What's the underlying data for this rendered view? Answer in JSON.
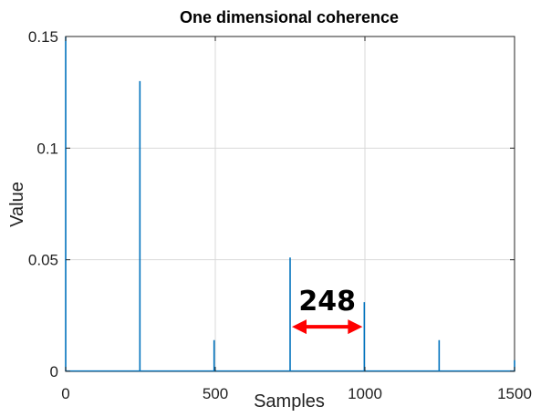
{
  "chart_data": {
    "type": "line",
    "title": "One dimensional coherence",
    "xlabel": "Samples",
    "ylabel": "Value",
    "xlim": [
      0,
      1500
    ],
    "ylim": [
      0,
      0.15
    ],
    "grid": true,
    "x_ticks": [
      "0",
      "500",
      "1000",
      "1500"
    ],
    "y_ticks": [
      "0",
      "0.05",
      "0.1",
      "0.15"
    ],
    "series": [
      {
        "color": "#0072bd",
        "peaks": [
          {
            "x": 0,
            "y": 0.15
          },
          {
            "x": 248,
            "y": 0.13
          },
          {
            "x": 496,
            "y": 0.014
          },
          {
            "x": 750,
            "y": 0.051
          },
          {
            "x": 998,
            "y": 0.031
          },
          {
            "x": 1248,
            "y": 0.014
          },
          {
            "x": 1500,
            "y": 0.005
          }
        ]
      }
    ],
    "annotation": {
      "text": "248",
      "x_from": 750,
      "x_to": 998,
      "y": 0.02,
      "arrow_color": "#ff0000"
    }
  }
}
